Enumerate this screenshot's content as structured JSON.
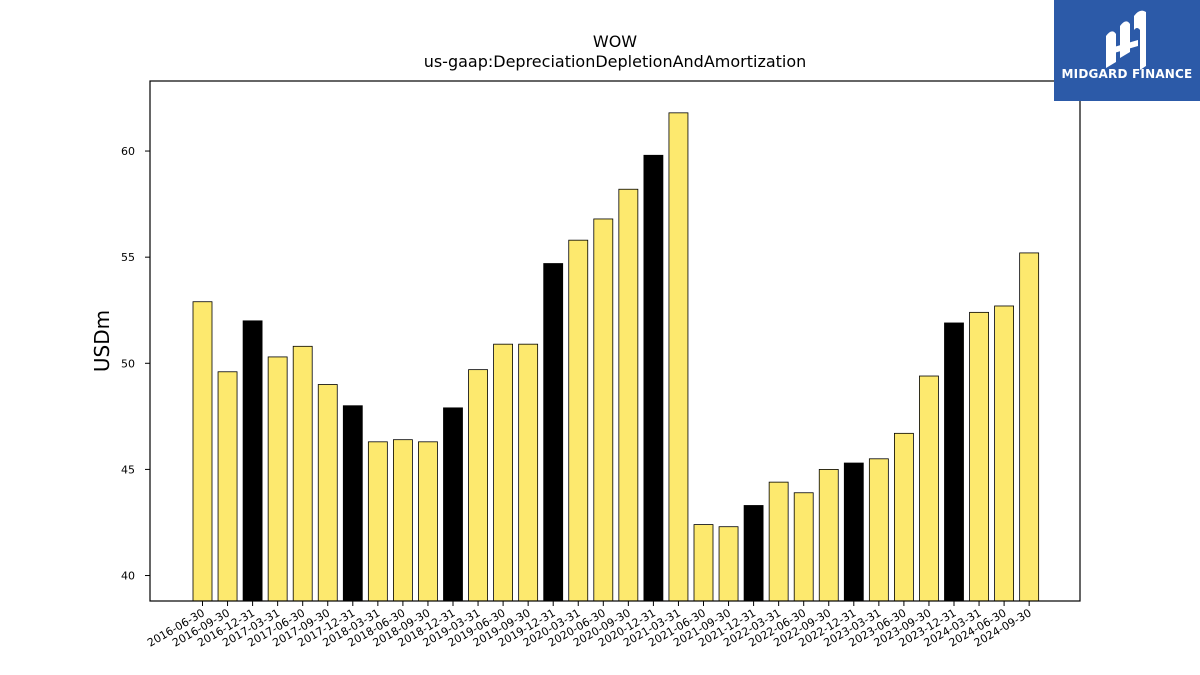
{
  "chart_data": {
    "type": "bar",
    "title": "WOW",
    "subtitle": "us-gaap:DepreciationDepletionAndAmortization",
    "xlabel": "",
    "ylabel": "USDm",
    "ylim": [
      38.8,
      63.3
    ],
    "yticks": [
      40,
      45,
      50,
      55,
      60
    ],
    "grid": false,
    "categories": [
      "2016-06-30",
      "2016-09-30",
      "2016-12-31",
      "2017-03-31",
      "2017-06-30",
      "2017-09-30",
      "2017-12-31",
      "2018-03-31",
      "2018-06-30",
      "2018-09-30",
      "2018-12-31",
      "2019-03-31",
      "2019-06-30",
      "2019-09-30",
      "2019-12-31",
      "2020-03-31",
      "2020-06-30",
      "2020-09-30",
      "2020-12-31",
      "2021-03-31",
      "2021-06-30",
      "2021-09-30",
      "2021-12-31",
      "2022-03-31",
      "2022-06-30",
      "2022-09-30",
      "2022-12-31",
      "2023-03-31",
      "2023-06-30",
      "2023-09-30",
      "2023-12-31",
      "2024-03-31",
      "2024-06-30",
      "2024-09-30"
    ],
    "values": [
      52.9,
      49.6,
      52.0,
      50.3,
      50.8,
      49.0,
      48.0,
      46.3,
      46.4,
      46.3,
      47.9,
      49.7,
      50.9,
      50.9,
      54.7,
      55.8,
      56.8,
      58.2,
      59.8,
      61.8,
      42.4,
      42.3,
      43.3,
      44.4,
      43.9,
      45.0,
      45.3,
      45.5,
      46.7,
      49.4,
      51.9,
      52.4,
      52.7,
      55.2
    ],
    "colors": {
      "default": "#fde96e",
      "highlight": "#000000",
      "edge": "#000000"
    },
    "highlighted": [
      "2016-12-31",
      "2017-12-31",
      "2018-12-31",
      "2019-12-31",
      "2020-12-31",
      "2021-12-31",
      "2022-12-31",
      "2023-12-31"
    ]
  },
  "logo": {
    "name": "MIDGARD FINANCE",
    "background": "#2c5aa8",
    "icon": "midgard-logo-icon"
  }
}
